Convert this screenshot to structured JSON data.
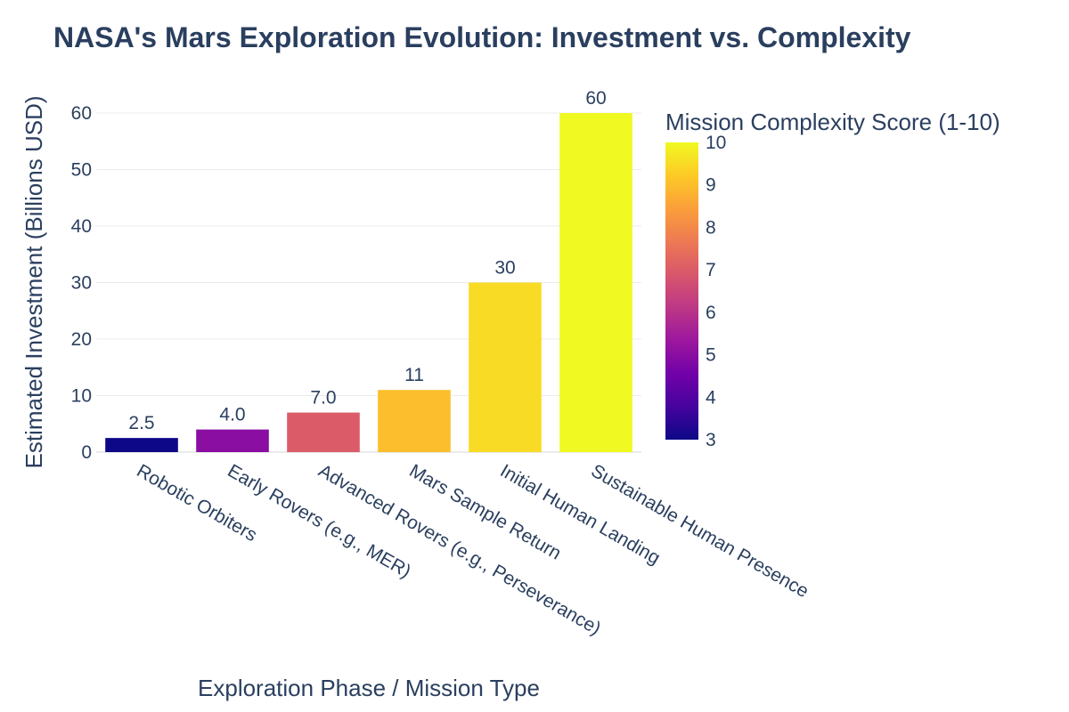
{
  "chart_data": {
    "type": "bar",
    "title": "NASA's Mars Exploration Evolution: Investment vs. Complexity",
    "xlabel": "Exploration Phase / Mission Type",
    "ylabel": "Estimated Investment (Billions USD)",
    "categories": [
      "Robotic Orbiters",
      "Early Rovers (e.g., MER)",
      "Advanced Rovers (e.g., Perseverance)",
      "Mars Sample Return",
      "Initial Human Landing",
      "Sustainable Human Presence"
    ],
    "values": [
      2.5,
      4.0,
      7.0,
      11,
      30,
      60
    ],
    "value_labels": [
      "2.5",
      "4.0",
      "7.0",
      "11",
      "30",
      "60"
    ],
    "complexity": [
      3,
      5,
      7,
      9,
      9.5,
      10
    ],
    "ylim": [
      0,
      60
    ],
    "yticks": [
      0,
      10,
      20,
      30,
      40,
      50,
      60
    ],
    "grid": true,
    "colorbar": {
      "title": "Mission Complexity Score (1-10)",
      "range": [
        3,
        10
      ],
      "ticks": [
        3,
        4,
        5,
        6,
        7,
        8,
        9,
        10
      ],
      "colorscale": "Plasma",
      "placement": "right"
    }
  }
}
